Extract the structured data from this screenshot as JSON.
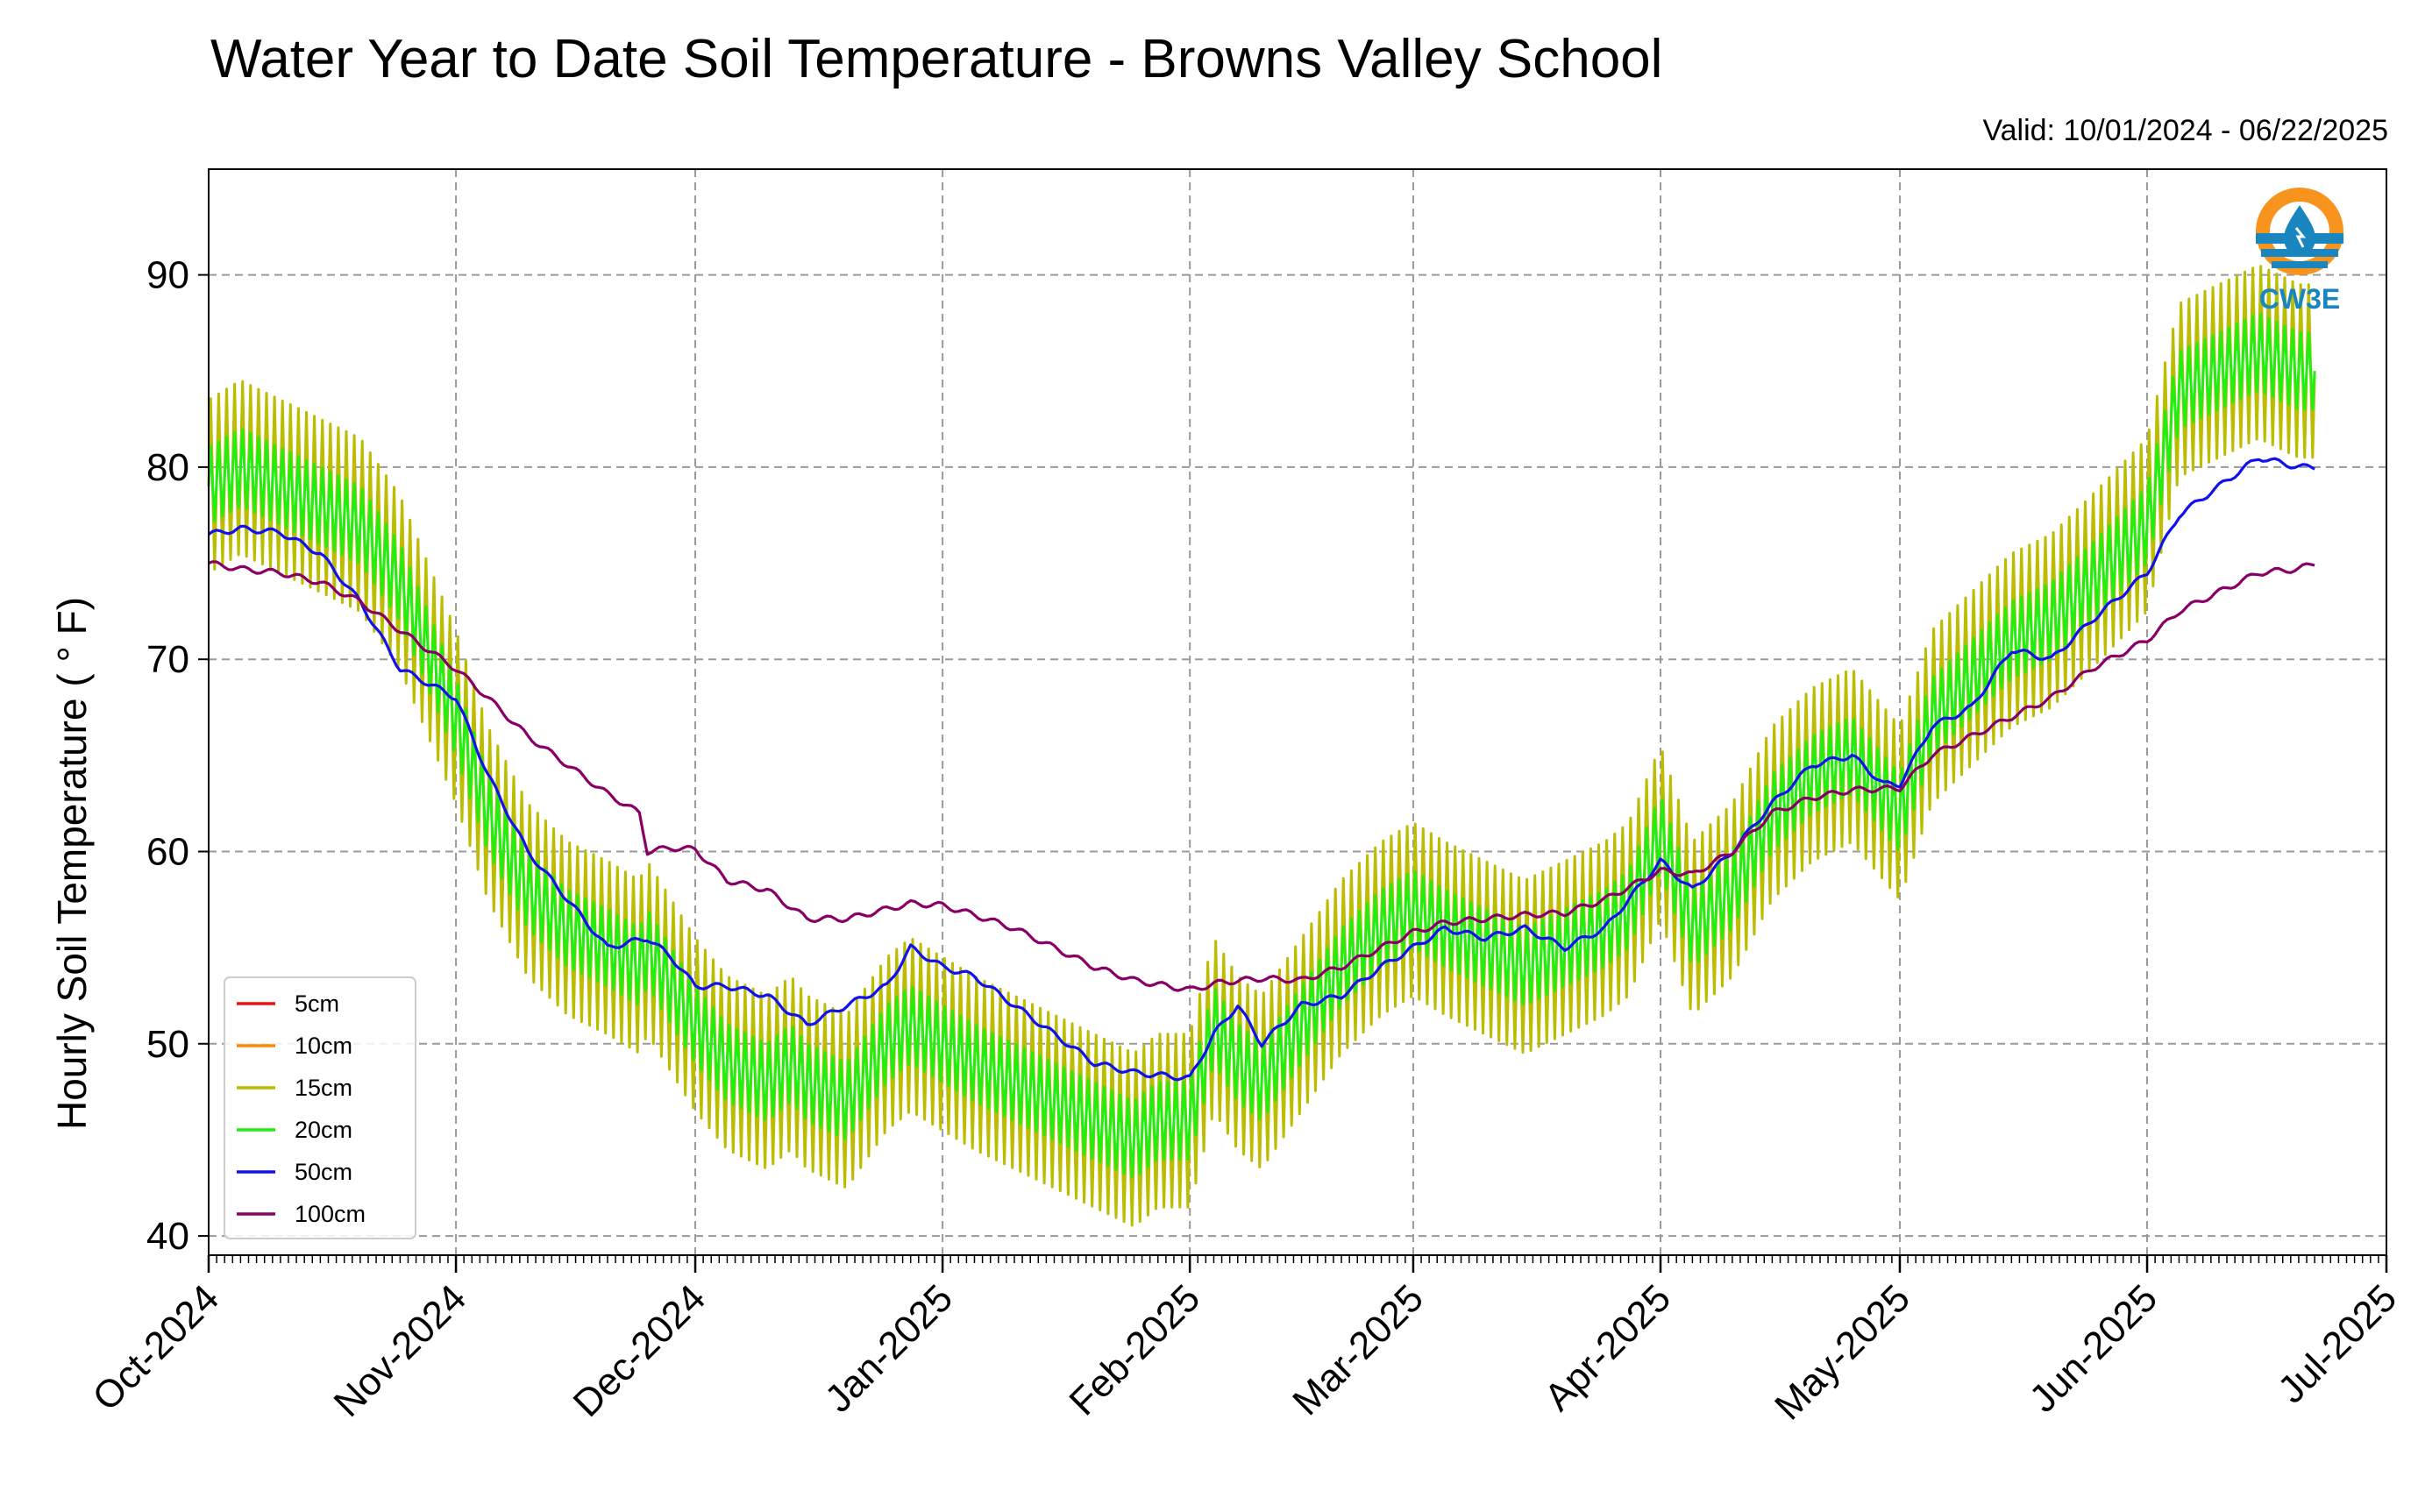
{
  "chart_data": {
    "type": "line",
    "title": "Water Year to Date Soil Temperature - Browns Valley School",
    "subtitle": "Valid: 10/01/2024 - 06/22/2025",
    "ylabel": "Hourly Soil Temperature ( ° F)",
    "xlabel": "",
    "ylim": [
      39,
      95.5
    ],
    "yticks": [
      40,
      50,
      60,
      70,
      80,
      90
    ],
    "xlim": [
      "2024-10-01",
      "2025-07-01"
    ],
    "x_tick_labels": [
      "Oct-2024",
      "Nov-2024",
      "Dec-2024",
      "Jan-2025",
      "Feb-2025",
      "Mar-2025",
      "Apr-2025",
      "May-2025",
      "Jun-2025",
      "Jul-2025"
    ],
    "x_tick_dates": [
      "2024-10-01",
      "2024-11-01",
      "2024-12-01",
      "2025-01-01",
      "2025-02-01",
      "2025-03-01",
      "2025-04-01",
      "2025-05-01",
      "2025-06-01",
      "2025-07-01"
    ],
    "grid": true,
    "legend_placement": "lower-left",
    "series": [
      {
        "name": "5cm",
        "color": "#ee1111",
        "daily_range_approx": 0,
        "x": [],
        "y": []
      },
      {
        "name": "10cm",
        "color": "#ff8800",
        "daily_range_approx": 0,
        "x": [],
        "y": []
      },
      {
        "name": "15cm",
        "color": "#bcbc00",
        "daily_range_approx": 9,
        "x": [
          "2024-10-01",
          "2024-10-05",
          "2024-10-10",
          "2024-10-15",
          "2024-10-20",
          "2024-10-25",
          "2024-11-01",
          "2024-11-05",
          "2024-11-10",
          "2024-11-15",
          "2024-11-20",
          "2024-11-24",
          "2024-11-25",
          "2024-11-28",
          "2024-12-01",
          "2024-12-05",
          "2024-12-10",
          "2024-12-13",
          "2024-12-15",
          "2024-12-20",
          "2024-12-25",
          "2024-12-28",
          "2025-01-01",
          "2025-01-05",
          "2025-01-10",
          "2025-01-15",
          "2025-01-20",
          "2025-01-25",
          "2025-01-28",
          "2025-02-01",
          "2025-02-04",
          "2025-02-07",
          "2025-02-10",
          "2025-02-15",
          "2025-02-20",
          "2025-02-25",
          "2025-03-01",
          "2025-03-05",
          "2025-03-10",
          "2025-03-15",
          "2025-03-20",
          "2025-03-25",
          "2025-03-28",
          "2025-04-01",
          "2025-04-05",
          "2025-04-10",
          "2025-04-15",
          "2025-04-20",
          "2025-04-25",
          "2025-04-29",
          "2025-05-01",
          "2025-05-05",
          "2025-05-10",
          "2025-05-15",
          "2025-05-20",
          "2025-05-25",
          "2025-06-01",
          "2025-06-05",
          "2025-06-10",
          "2025-06-15",
          "2025-06-20",
          "2025-06-22"
        ],
        "y": [
          79,
          80,
          79,
          78,
          77,
          74,
          67,
          62,
          58,
          56,
          55,
          54,
          55,
          53,
          51,
          49,
          48,
          49,
          48,
          47,
          50,
          51,
          50,
          49,
          48,
          47,
          46,
          45,
          46,
          46,
          51,
          49,
          48,
          51,
          54,
          56,
          57,
          56,
          55,
          54,
          55,
          56,
          57,
          61,
          56,
          58,
          62,
          64,
          65,
          63,
          62,
          67,
          69,
          71,
          72,
          74,
          77,
          84,
          85,
          86,
          85,
          85
        ]
      },
      {
        "name": "20cm",
        "color": "#22ee11",
        "daily_range_approx": 4,
        "x": [
          "2024-10-01",
          "2024-10-05",
          "2024-10-10",
          "2024-10-15",
          "2024-10-20",
          "2024-10-25",
          "2024-11-01",
          "2024-11-05",
          "2024-11-10",
          "2024-11-15",
          "2024-11-20",
          "2024-11-24",
          "2024-11-25",
          "2024-11-28",
          "2024-12-01",
          "2024-12-05",
          "2024-12-10",
          "2024-12-13",
          "2024-12-15",
          "2024-12-20",
          "2024-12-25",
          "2024-12-28",
          "2025-01-01",
          "2025-01-05",
          "2025-01-10",
          "2025-01-15",
          "2025-01-20",
          "2025-01-25",
          "2025-01-28",
          "2025-02-01",
          "2025-02-04",
          "2025-02-07",
          "2025-02-10",
          "2025-02-15",
          "2025-02-20",
          "2025-02-25",
          "2025-03-01",
          "2025-03-05",
          "2025-03-10",
          "2025-03-15",
          "2025-03-20",
          "2025-03-25",
          "2025-03-28",
          "2025-04-01",
          "2025-04-05",
          "2025-04-10",
          "2025-04-15",
          "2025-04-20",
          "2025-04-25",
          "2025-04-29",
          "2025-05-01",
          "2025-05-05",
          "2025-05-10",
          "2025-05-15",
          "2025-05-20",
          "2025-05-25",
          "2025-06-01",
          "2025-06-05",
          "2025-06-10",
          "2025-06-15",
          "2025-06-20",
          "2025-06-22"
        ],
        "y": [
          79,
          80,
          79,
          78,
          77,
          74,
          67,
          62,
          58,
          56,
          55,
          54,
          55,
          53,
          51,
          49,
          48,
          49,
          48,
          47,
          50,
          51,
          50,
          49,
          48,
          47,
          46,
          45,
          46,
          46,
          51,
          49,
          48,
          51,
          54,
          56,
          57,
          56,
          55,
          54,
          55,
          56,
          57,
          61,
          56,
          58,
          62,
          64,
          65,
          63,
          62,
          67,
          69,
          71,
          72,
          74,
          77,
          84,
          85,
          86,
          85,
          85
        ]
      },
      {
        "name": "50cm",
        "color": "#1111ee",
        "daily_range_approx": 0,
        "x": [
          "2024-10-01",
          "2024-10-05",
          "2024-10-10",
          "2024-10-15",
          "2024-10-20",
          "2024-10-25",
          "2024-11-01",
          "2024-11-05",
          "2024-11-10",
          "2024-11-15",
          "2024-11-20",
          "2024-11-25",
          "2024-11-28",
          "2024-12-01",
          "2024-12-05",
          "2024-12-10",
          "2024-12-15",
          "2024-12-20",
          "2024-12-25",
          "2024-12-28",
          "2025-01-01",
          "2025-01-05",
          "2025-01-10",
          "2025-01-15",
          "2025-01-20",
          "2025-01-25",
          "2025-02-01",
          "2025-02-04",
          "2025-02-07",
          "2025-02-10",
          "2025-02-15",
          "2025-02-20",
          "2025-02-25",
          "2025-03-01",
          "2025-03-05",
          "2025-03-10",
          "2025-03-15",
          "2025-03-20",
          "2025-03-25",
          "2025-04-01",
          "2025-04-05",
          "2025-04-10",
          "2025-04-15",
          "2025-04-20",
          "2025-04-25",
          "2025-04-29",
          "2025-05-01",
          "2025-05-05",
          "2025-05-10",
          "2025-05-15",
          "2025-05-20",
          "2025-05-25",
          "2025-06-01",
          "2025-06-05",
          "2025-06-10",
          "2025-06-15",
          "2025-06-20",
          "2025-06-22"
        ],
        "y": [
          76.5,
          76.8,
          76.6,
          75.5,
          73,
          69.5,
          68,
          64,
          60,
          57.5,
          55,
          55.5,
          54.5,
          53,
          53,
          52.5,
          51,
          52,
          53,
          55,
          54,
          53.5,
          52,
          50.5,
          49,
          48.5,
          48.2,
          50.5,
          52,
          50,
          52,
          52.5,
          54,
          55,
          56,
          55.5,
          56,
          55,
          56,
          59.5,
          58,
          60,
          62.5,
          64.5,
          65,
          63.5,
          63.5,
          66.5,
          67.5,
          70.5,
          70,
          72,
          74.5,
          77.5,
          79,
          80.5,
          80,
          80
        ]
      },
      {
        "name": "100cm",
        "color": "#880066",
        "daily_range_approx": 0,
        "x": [
          "2024-10-01",
          "2024-10-05",
          "2024-10-10",
          "2024-10-15",
          "2024-10-20",
          "2024-10-25",
          "2024-11-01",
          "2024-11-05",
          "2024-11-10",
          "2024-11-15",
          "2024-11-20",
          "2024-11-24",
          "2024-11-25",
          "2024-11-28",
          "2024-12-01",
          "2024-12-05",
          "2024-12-10",
          "2024-12-15",
          "2024-12-20",
          "2024-12-25",
          "2024-12-28",
          "2025-01-01",
          "2025-01-05",
          "2025-01-10",
          "2025-01-15",
          "2025-01-20",
          "2025-01-25",
          "2025-02-01",
          "2025-02-05",
          "2025-02-10",
          "2025-02-15",
          "2025-02-20",
          "2025-02-25",
          "2025-03-01",
          "2025-03-05",
          "2025-03-10",
          "2025-03-15",
          "2025-03-20",
          "2025-03-25",
          "2025-04-01",
          "2025-04-05",
          "2025-04-10",
          "2025-04-15",
          "2025-04-20",
          "2025-04-25",
          "2025-05-01",
          "2025-05-05",
          "2025-05-10",
          "2025-05-15",
          "2025-05-20",
          "2025-05-25",
          "2025-06-01",
          "2025-06-05",
          "2025-06-10",
          "2025-06-15",
          "2025-06-20",
          "2025-06-22"
        ],
        "y": [
          75,
          74.7,
          74.5,
          74,
          73,
          71.5,
          69.5,
          68,
          66,
          64.5,
          63,
          62,
          60,
          60.2,
          60.1,
          58.5,
          58,
          56.5,
          56.5,
          57,
          57.3,
          57.2,
          56.7,
          56,
          55,
          54,
          53.3,
          52.8,
          53.2,
          53.4,
          53.3,
          54,
          55,
          55.8,
          56.3,
          56.5,
          56.7,
          56.8,
          57.5,
          59,
          58.8,
          60,
          62,
          62.8,
          63.2,
          63.3,
          65,
          66,
          67,
          68,
          69.5,
          71,
          72.5,
          73.5,
          74.5,
          74.7,
          75
        ]
      }
    ]
  },
  "logo": {
    "text": "CW3E"
  }
}
